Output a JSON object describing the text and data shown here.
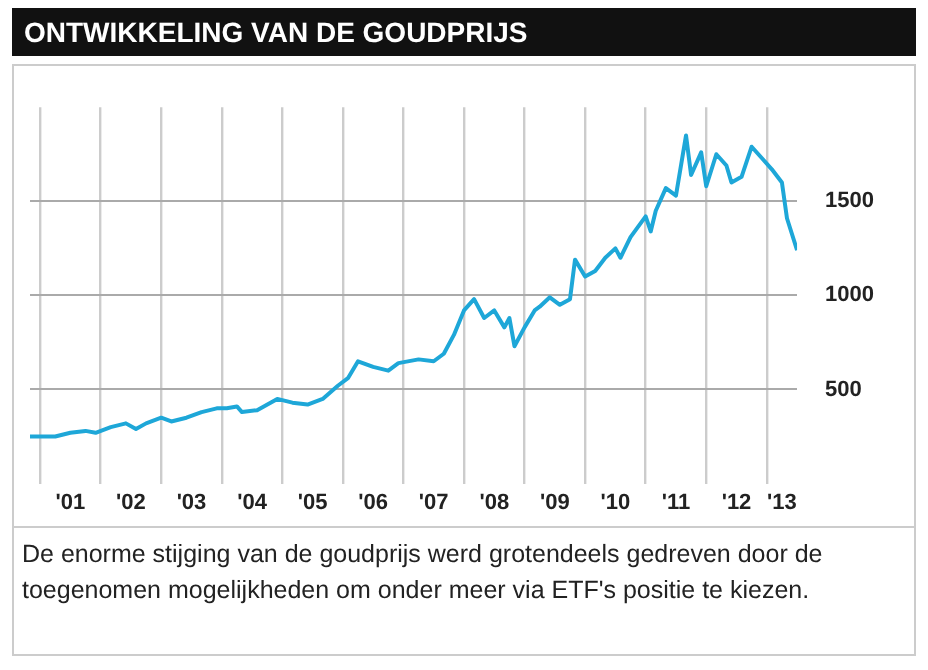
{
  "chart_data": {
    "type": "line",
    "title": "ONTWIKKELING VAN DE GOUDPRIJS",
    "annotations": [
      "De enorme stijging van de goudprijs werd grotendeels gedreven door de toegenomen mogelijkheden om onder meer via ETF's positie te kiezen."
    ],
    "x": [
      "2000-11",
      "2001-04",
      "2001-07",
      "2001-10",
      "2001-12",
      "2002-03",
      "2002-06",
      "2002-08",
      "2002-10",
      "2003-01",
      "2003-03",
      "2003-06",
      "2003-09",
      "2003-12",
      "2004-02",
      "2004-04",
      "2004-05",
      "2004-08",
      "2004-12",
      "2005-03",
      "2005-06",
      "2005-09",
      "2005-12",
      "2006-02",
      "2006-04",
      "2006-07",
      "2006-10",
      "2006-12",
      "2007-04",
      "2007-07",
      "2007-09",
      "2007-11",
      "2008-01",
      "2008-03",
      "2008-05",
      "2008-07",
      "2008-09",
      "2008-10",
      "2008-11",
      "2009-01",
      "2009-03",
      "2009-04",
      "2009-06",
      "2009-08",
      "2009-10",
      "2009-11",
      "2010-01",
      "2010-03",
      "2010-05",
      "2010-07",
      "2010-08",
      "2010-10",
      "2011-01",
      "2011-02",
      "2011-03",
      "2011-05",
      "2011-07",
      "2011-09",
      "2011-10",
      "2011-12",
      "2012-01",
      "2012-03",
      "2012-05",
      "2012-06",
      "2012-08",
      "2012-10",
      "2012-12",
      "2013-02",
      "2013-04",
      "2013-05",
      "2013-07"
    ],
    "series": [
      {
        "color": "#1ea7d8",
        "values": [
          250,
          250,
          270,
          280,
          270,
          300,
          320,
          290,
          320,
          350,
          330,
          350,
          380,
          400,
          400,
          410,
          380,
          390,
          450,
          430,
          420,
          450,
          520,
          560,
          650,
          620,
          600,
          640,
          660,
          650,
          690,
          790,
          920,
          980,
          880,
          920,
          830,
          880,
          730,
          830,
          920,
          940,
          990,
          950,
          980,
          1190,
          1100,
          1130,
          1200,
          1250,
          1200,
          1310,
          1420,
          1340,
          1450,
          1570,
          1530,
          1850,
          1640,
          1760,
          1580,
          1750,
          1690,
          1600,
          1630,
          1790,
          1730,
          1670,
          1600,
          1410,
          1240
        ]
      }
    ],
    "xlim": [
      "2000-11",
      "2013-07"
    ],
    "xticks": [
      {
        "value": "2001",
        "label": null
      },
      {
        "value": "2001-07",
        "label": "'01"
      },
      {
        "value": "2002",
        "label": null
      },
      {
        "value": "2002-07",
        "label": "'02"
      },
      {
        "value": "2003",
        "label": null
      },
      {
        "value": "2003-07",
        "label": "'03"
      },
      {
        "value": "2004",
        "label": null
      },
      {
        "value": "2004-07",
        "label": "'04"
      },
      {
        "value": "2005",
        "label": null
      },
      {
        "value": "2005-07",
        "label": "'05"
      },
      {
        "value": "2006",
        "label": null
      },
      {
        "value": "2006-07",
        "label": "'06"
      },
      {
        "value": "2007",
        "label": null
      },
      {
        "value": "2007-07",
        "label": "'07"
      },
      {
        "value": "2008",
        "label": null
      },
      {
        "value": "2008-07",
        "label": "'08"
      },
      {
        "value": "2009",
        "label": null
      },
      {
        "value": "2009-07",
        "label": "'09"
      },
      {
        "value": "2010",
        "label": null
      },
      {
        "value": "2010-07",
        "label": "'10"
      },
      {
        "value": "2011",
        "label": null
      },
      {
        "value": "2011-07",
        "label": "'11"
      },
      {
        "value": "2012",
        "label": null
      },
      {
        "value": "2012-07",
        "label": "'12"
      },
      {
        "value": "2013",
        "label": null
      },
      {
        "value": "2013-04",
        "label": "'13"
      }
    ],
    "ylim": [
      0,
      2000
    ],
    "yticks": [
      500,
      1000,
      1500
    ],
    "grid": true,
    "marker": "none",
    "line_style": "solid"
  }
}
